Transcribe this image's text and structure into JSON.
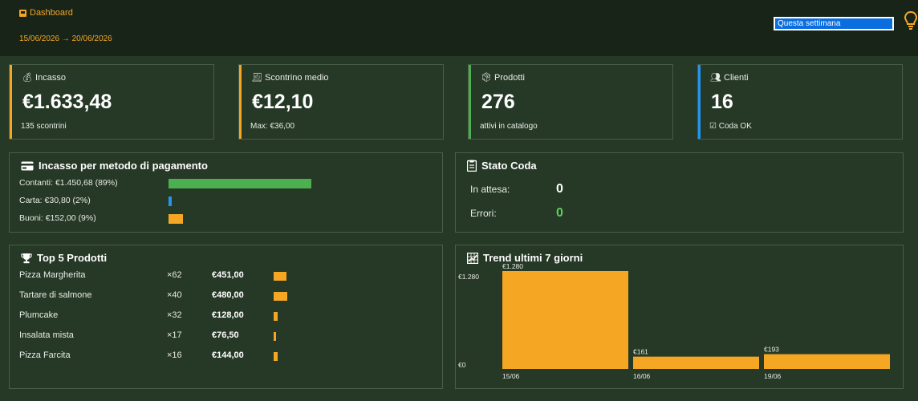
{
  "header": {
    "title": "Dashboard",
    "date_range": "15/06/2026 → 20/06/2026",
    "period_select": "Questa settimana"
  },
  "colors": {
    "accent": "#f5a623",
    "green": "#4caf50",
    "blue": "#2196f3",
    "bg": "#263826",
    "header_bg": "#182418"
  },
  "kpis": [
    {
      "icon": "money-bag-icon",
      "label": "Incasso",
      "value": "€1.633,48",
      "sub": "135 scontrini",
      "color": "#f5a623"
    },
    {
      "icon": "receipt-icon",
      "label": "Scontrino medio",
      "value": "€12,10",
      "sub": "Max: €36,00",
      "color": "#f5a623"
    },
    {
      "icon": "package-icon",
      "label": "Prodotti",
      "value": "276",
      "sub": "attivi in catalogo",
      "color": "#4caf50"
    },
    {
      "icon": "people-icon",
      "label": "Clienti",
      "value": "16",
      "sub": "Coda OK",
      "sub_icon": "checkbox-icon",
      "color": "#2196f3"
    }
  ],
  "payments": {
    "title": "Incasso per metodo di pagamento",
    "rows": [
      {
        "label": "Contanti: €1.450,68 (89%)",
        "share": 0.89,
        "color": "#4caf50"
      },
      {
        "label": "Carta: €30,80 (2%)",
        "share": 0.02,
        "color": "#2196f3"
      },
      {
        "label": "Buoni: €152,00 (9%)",
        "share": 0.09,
        "color": "#f5a623"
      }
    ]
  },
  "queue": {
    "title": "Stato Coda",
    "waiting_label": "In attesa:",
    "waiting_value": "0",
    "errors_label": "Errori:",
    "errors_value": "0"
  },
  "top_products": {
    "title": "Top 5 Prodotti",
    "items": [
      {
        "name": "Pizza Margherita",
        "qty": "×62",
        "amount": "€451,00",
        "value": 451.0
      },
      {
        "name": "Tartare di salmone",
        "qty": "×40",
        "amount": "€480,00",
        "value": 480.0
      },
      {
        "name": "Plumcake",
        "qty": "×32",
        "amount": "€128,00",
        "value": 128.0
      },
      {
        "name": "Insalata mista",
        "qty": "×17",
        "amount": "€76,50",
        "value": 76.5
      },
      {
        "name": "Pizza Farcita",
        "qty": "×16",
        "amount": "€144,00",
        "value": 144.0
      }
    ]
  },
  "chart_data": {
    "type": "bar",
    "title": "Trend ultimi 7 giorni",
    "categories": [
      "15/06",
      "16/06",
      "19/06"
    ],
    "values": [
      1280,
      161,
      193
    ],
    "data_labels": [
      "€1.280",
      "€161",
      "€193"
    ],
    "ytick_labels": [
      "€1.280",
      "€0"
    ],
    "ylim": [
      0,
      1280
    ],
    "color": "#f5a623",
    "grid": false
  }
}
